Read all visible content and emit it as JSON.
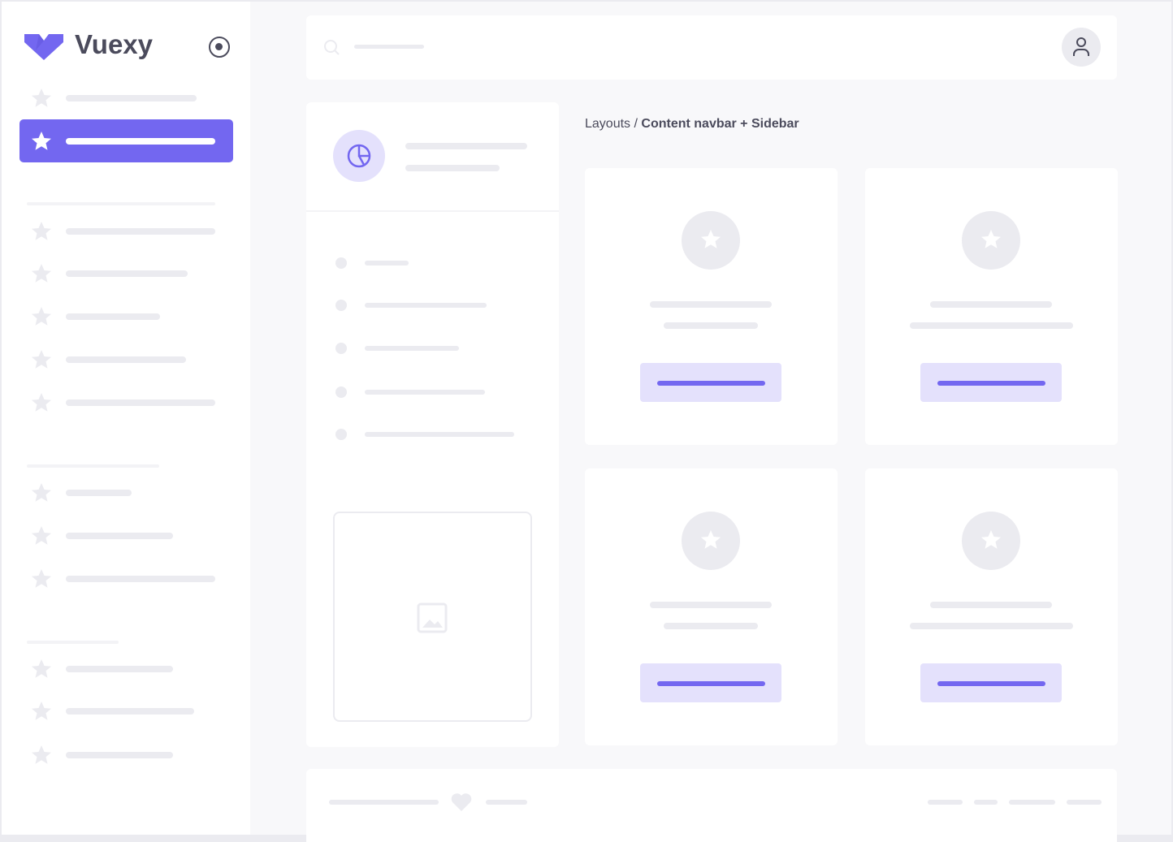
{
  "brand": {
    "name": "Vuexy",
    "color": "#7367f0"
  },
  "sidebar": {
    "toggle_icon": "radio-circle-icon",
    "item_icon": "star-icon",
    "active_index": 1
  },
  "navbar": {
    "search_icon": "search-icon",
    "avatar_icon": "user-icon"
  },
  "panel": {
    "header_icon": "pie-chart-icon",
    "image_icon": "image-icon"
  },
  "breadcrumb": {
    "parent": "Layouts",
    "separator": " / ",
    "current": "Content navbar + Sidebar"
  },
  "cards": [
    {
      "icon": "star-icon"
    },
    {
      "icon": "star-icon"
    },
    {
      "icon": "star-icon"
    },
    {
      "icon": "star-icon"
    }
  ],
  "footer": {
    "icon": "heart-icon"
  },
  "colors": {
    "primary": "#7367f0",
    "primary_light": "#e4e1fc",
    "skeleton": "#ebebf0",
    "text": "#4b4b5c"
  }
}
